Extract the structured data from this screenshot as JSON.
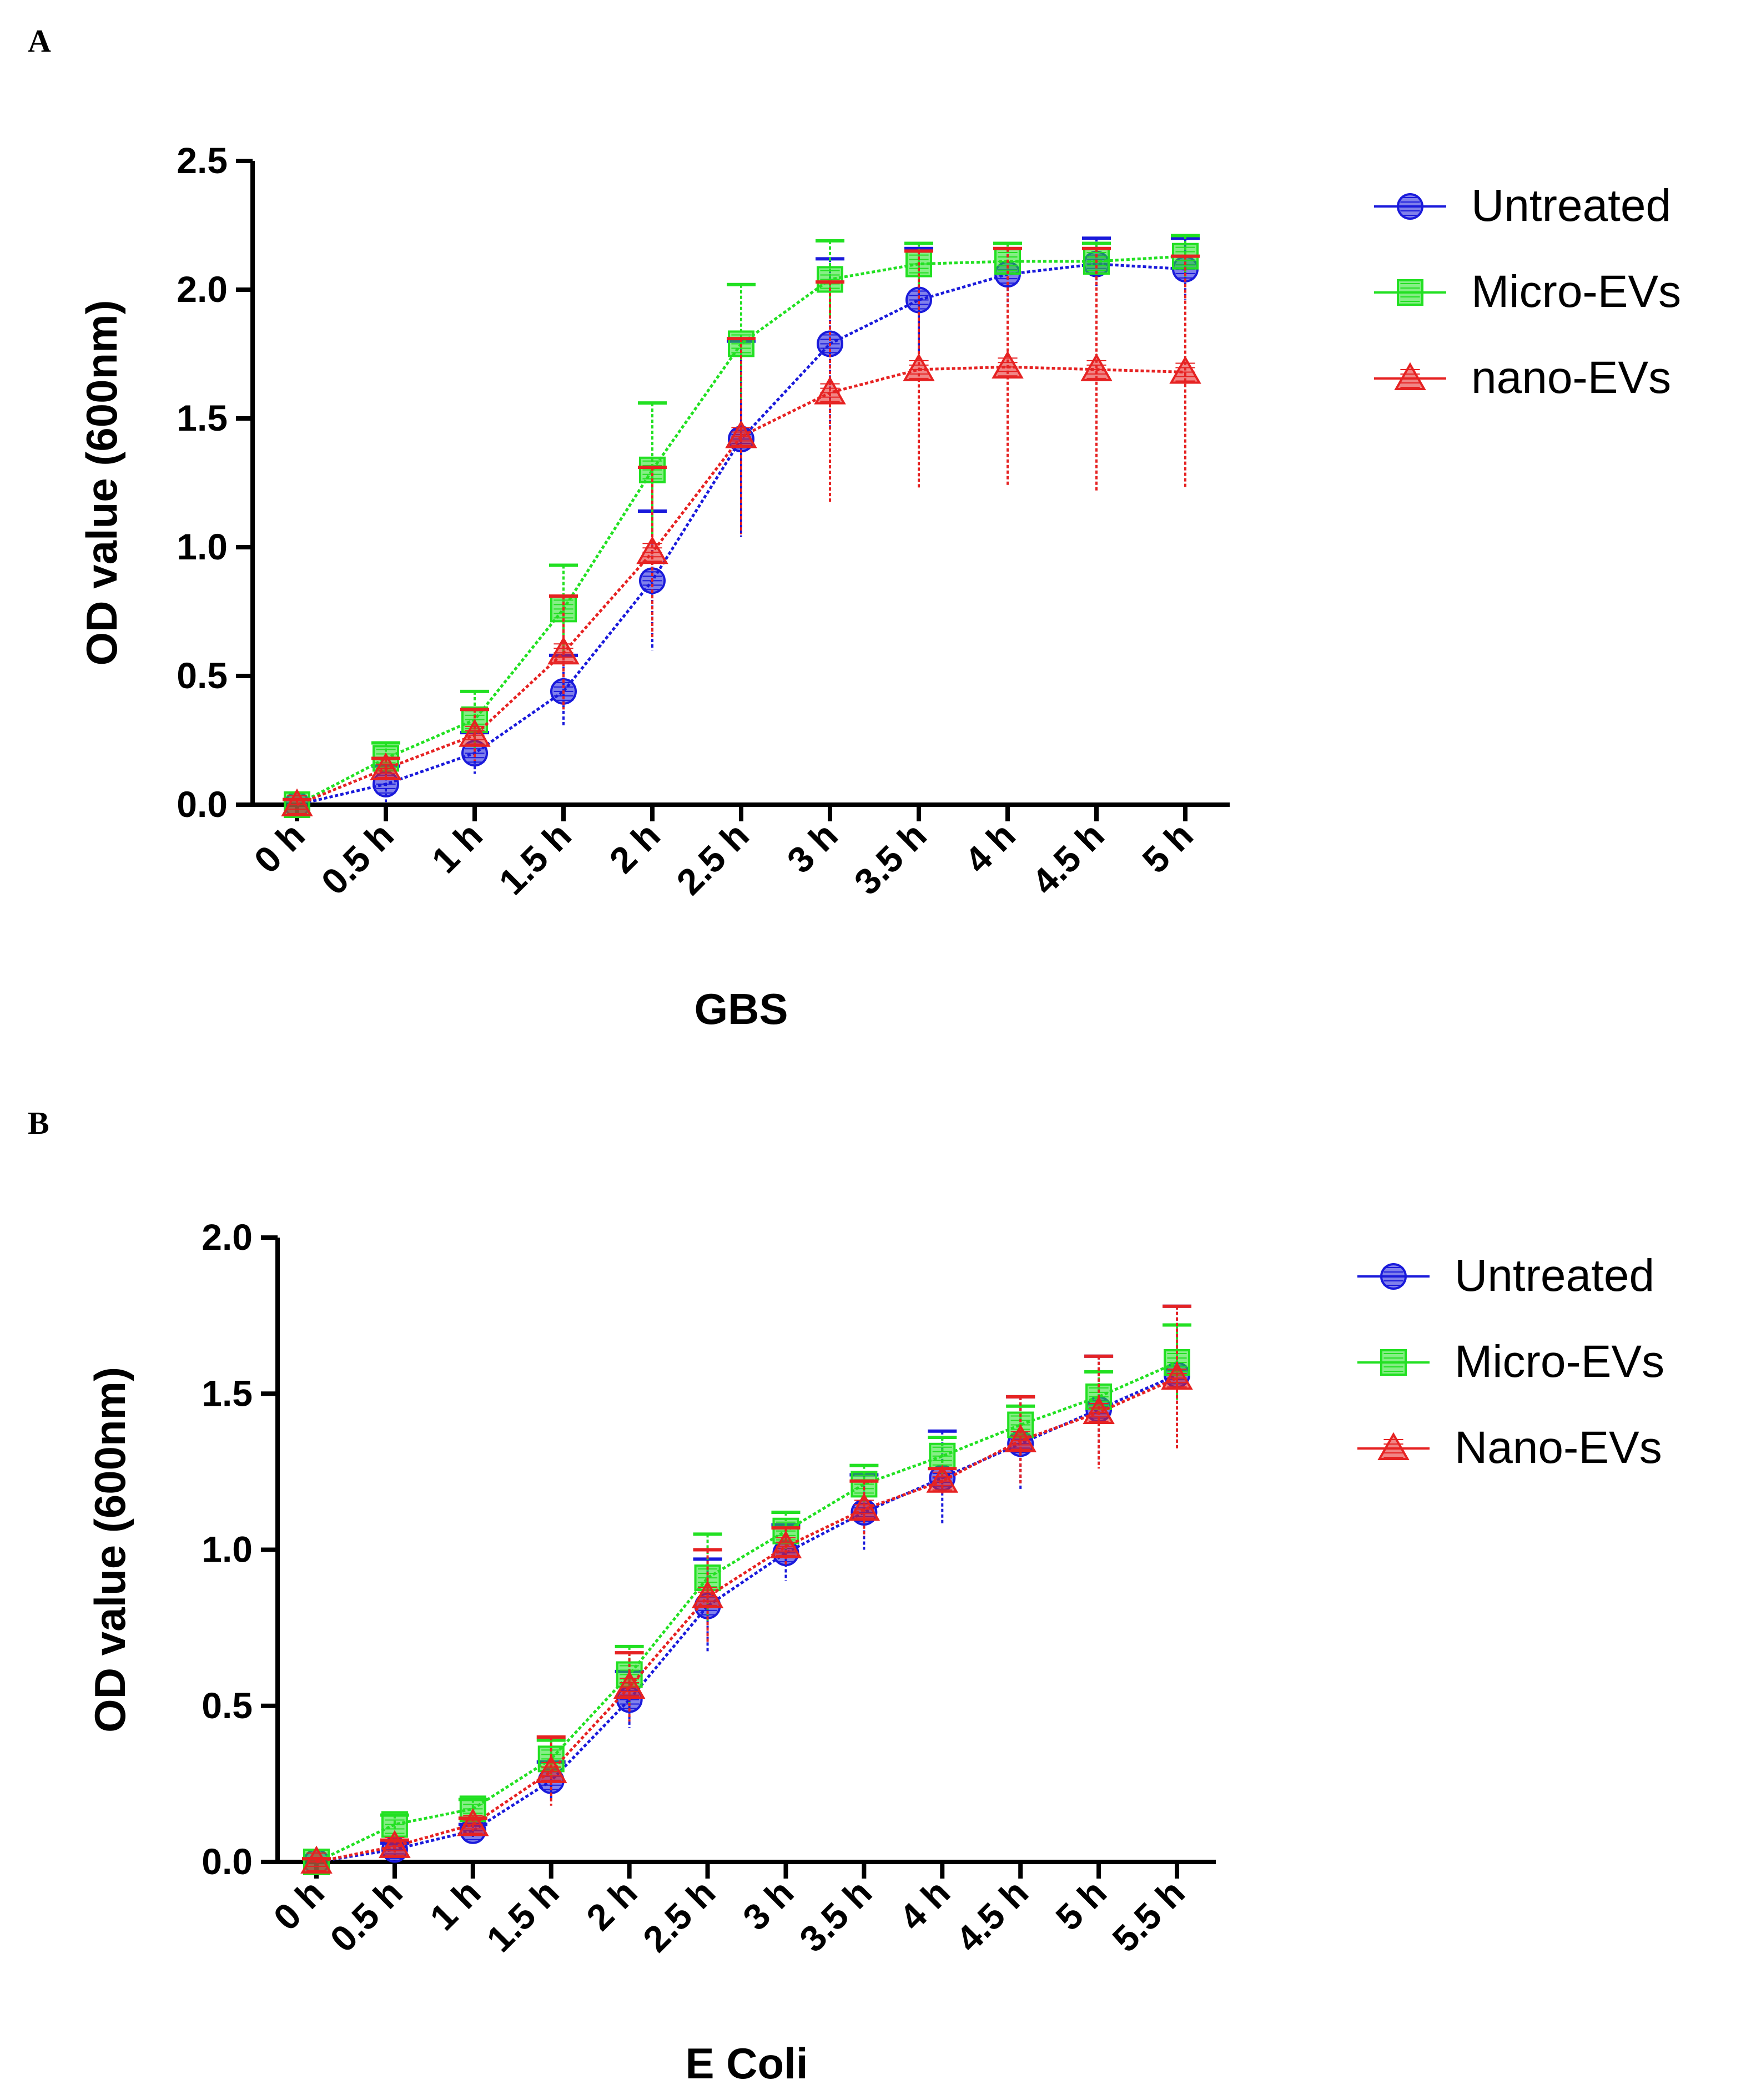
{
  "panels": {
    "a": {
      "label": "A"
    },
    "b": {
      "label": "B"
    }
  },
  "colors": {
    "untreated": "#1a1adb",
    "micro": "#22e022",
    "nano": "#e62222",
    "axis": "#000000"
  },
  "chart_data": [
    {
      "type": "line",
      "title": "",
      "xlabel": "GBS",
      "ylabel": "OD value (600nm)",
      "ylim": [
        0,
        2.5
      ],
      "yticks": [
        "0.0",
        "0.5",
        "1.0",
        "1.5",
        "2.0",
        "2.5"
      ],
      "categories": [
        "0 h",
        "0.5 h",
        "1 h",
        "1.5 h",
        "2 h",
        "2.5 h",
        "3 h",
        "3.5 h",
        "4 h",
        "4.5 h",
        "5 h"
      ],
      "legend_position": "top-right",
      "series": [
        {
          "name": "Untreated",
          "marker": "circle",
          "color_key": "untreated",
          "values": [
            0.0,
            0.08,
            0.2,
            0.44,
            0.87,
            1.42,
            1.79,
            1.96,
            2.06,
            2.1,
            2.08
          ],
          "errors": [
            0.02,
            0.07,
            0.08,
            0.14,
            0.27,
            0.38,
            0.33,
            0.2,
            0.12,
            0.1,
            0.12
          ]
        },
        {
          "name": "Micro-EVs",
          "marker": "square",
          "color_key": "micro",
          "values": [
            0.0,
            0.18,
            0.33,
            0.76,
            1.3,
            1.79,
            2.04,
            2.1,
            2.11,
            2.11,
            2.13
          ],
          "errors": [
            0.02,
            0.06,
            0.11,
            0.17,
            0.26,
            0.23,
            0.15,
            0.08,
            0.07,
            0.07,
            0.08
          ]
        },
        {
          "name": "nano-EVs",
          "marker": "triangle",
          "color_key": "nano",
          "values": [
            0.0,
            0.14,
            0.27,
            0.59,
            0.98,
            1.43,
            1.6,
            1.69,
            1.7,
            1.69,
            1.68
          ],
          "errors": [
            0.02,
            0.04,
            0.1,
            0.22,
            0.33,
            0.38,
            0.43,
            0.46,
            0.46,
            0.47,
            0.45
          ]
        }
      ]
    },
    {
      "type": "line",
      "title": "",
      "xlabel": "E Coli",
      "ylabel": "OD value (600nm)",
      "ylim": [
        0,
        2.0
      ],
      "yticks": [
        "0.0",
        "0.5",
        "1.0",
        "1.5",
        "2.0"
      ],
      "categories": [
        "0 h",
        "0.5 h",
        "1 h",
        "1.5 h",
        "2 h",
        "2.5 h",
        "3 h",
        "3.5 h",
        "4 h",
        "4.5 h",
        "5 h",
        "5.5 h"
      ],
      "legend_position": "top-right",
      "series": [
        {
          "name": "Untreated",
          "marker": "circle",
          "color_key": "untreated",
          "values": [
            0.0,
            0.04,
            0.1,
            0.26,
            0.52,
            0.82,
            0.99,
            1.12,
            1.23,
            1.34,
            1.45,
            1.56
          ],
          "errors": [
            0.01,
            0.02,
            0.02,
            0.06,
            0.09,
            0.15,
            0.09,
            0.12,
            0.15,
            0.15,
            0.17,
            0.22
          ]
        },
        {
          "name": "Micro-EVs",
          "marker": "square",
          "color_key": "micro",
          "values": [
            0.0,
            0.12,
            0.17,
            0.33,
            0.6,
            0.91,
            1.06,
            1.21,
            1.3,
            1.4,
            1.49,
            1.6
          ],
          "errors": [
            0.01,
            0.03,
            0.03,
            0.06,
            0.09,
            0.14,
            0.06,
            0.06,
            0.06,
            0.06,
            0.08,
            0.12
          ]
        },
        {
          "name": "Nano-EVs",
          "marker": "triangle",
          "color_key": "nano",
          "values": [
            0.0,
            0.05,
            0.12,
            0.29,
            0.56,
            0.85,
            1.01,
            1.13,
            1.22,
            1.35,
            1.44,
            1.55
          ],
          "errors": [
            0.01,
            0.02,
            0.02,
            0.11,
            0.11,
            0.15,
            0.06,
            0.09,
            0.04,
            0.14,
            0.18,
            0.23
          ]
        }
      ]
    }
  ]
}
